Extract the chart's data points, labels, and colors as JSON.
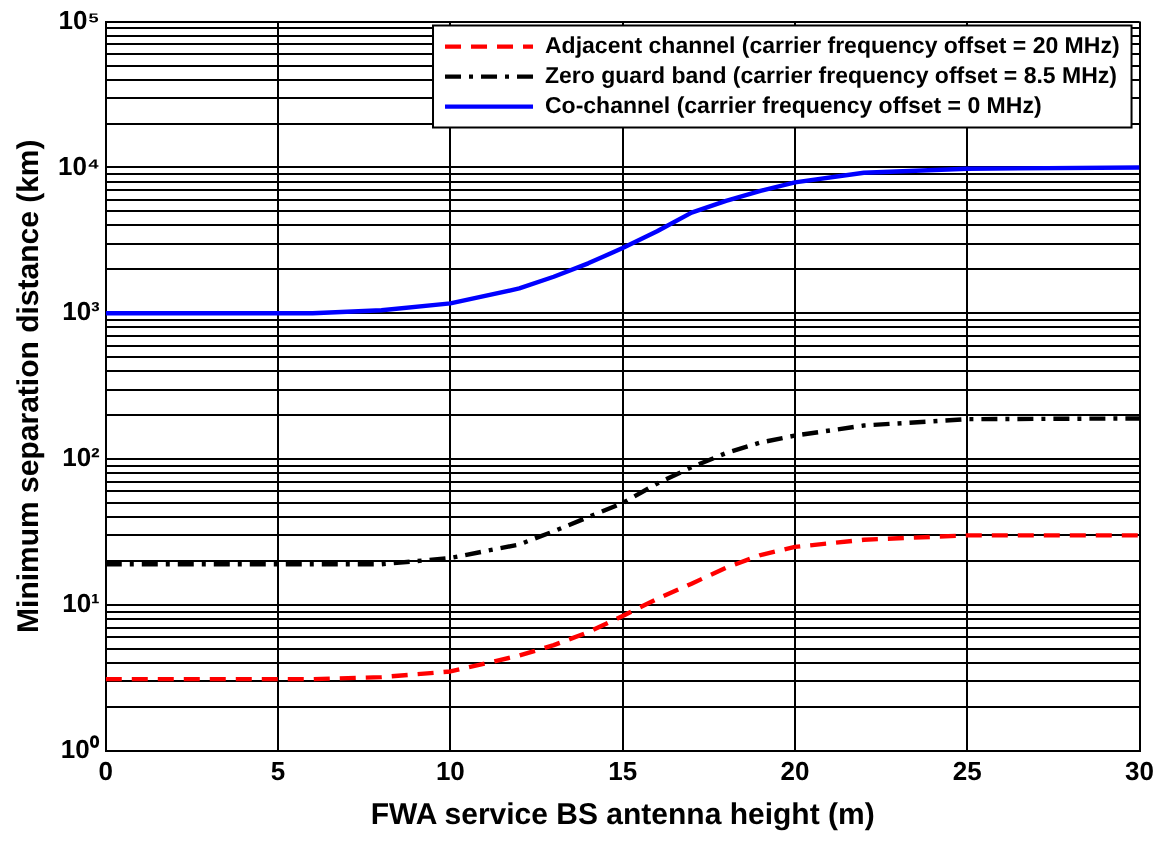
{
  "chart_data": {
    "type": "line",
    "xlabel": "FWA service BS antenna height (m)",
    "ylabel": "Minimum separation distance (km)",
    "log": "y",
    "grid": true,
    "legend": "top right",
    "marker": "none",
    "xlim": [
      0,
      30
    ],
    "xticks": [
      0,
      5,
      10,
      15,
      20,
      25,
      30
    ],
    "ylim": [
      1,
      100000
    ],
    "yticks": [
      {
        "value": 1,
        "label": "10⁰"
      },
      {
        "value": 2,
        "label": null
      },
      {
        "value": 3,
        "label": null
      },
      {
        "value": 4,
        "label": null
      },
      {
        "value": 5,
        "label": null
      },
      {
        "value": 6,
        "label": null
      },
      {
        "value": 7,
        "label": null
      },
      {
        "value": 8,
        "label": null
      },
      {
        "value": 9,
        "label": null
      },
      {
        "value": 10,
        "label": "10¹"
      },
      {
        "value": 20,
        "label": null
      },
      {
        "value": 30,
        "label": null
      },
      {
        "value": 40,
        "label": null
      },
      {
        "value": 50,
        "label": null
      },
      {
        "value": 60,
        "label": null
      },
      {
        "value": 70,
        "label": null
      },
      {
        "value": 80,
        "label": null
      },
      {
        "value": 90,
        "label": null
      },
      {
        "value": 100,
        "label": "10²"
      },
      {
        "value": 200,
        "label": null
      },
      {
        "value": 300,
        "label": null
      },
      {
        "value": 400,
        "label": null
      },
      {
        "value": 500,
        "label": null
      },
      {
        "value": 600,
        "label": null
      },
      {
        "value": 700,
        "label": null
      },
      {
        "value": 800,
        "label": null
      },
      {
        "value": 900,
        "label": null
      },
      {
        "value": 1000,
        "label": "10³"
      },
      {
        "value": 2000,
        "label": null
      },
      {
        "value": 3000,
        "label": null
      },
      {
        "value": 4000,
        "label": null
      },
      {
        "value": 5000,
        "label": null
      },
      {
        "value": 6000,
        "label": null
      },
      {
        "value": 7000,
        "label": null
      },
      {
        "value": 8000,
        "label": null
      },
      {
        "value": 9000,
        "label": null
      },
      {
        "value": 10000,
        "label": "10⁴"
      },
      {
        "value": 20000,
        "label": null
      },
      {
        "value": 30000,
        "label": null
      },
      {
        "value": 40000,
        "label": null
      },
      {
        "value": 50000,
        "label": null
      },
      {
        "value": 60000,
        "label": null
      },
      {
        "value": 70000,
        "label": null
      },
      {
        "value": 80000,
        "label": null
      },
      {
        "value": 90000,
        "label": null
      },
      {
        "value": 100000,
        "label": "10⁵"
      }
    ],
    "x": [
      0,
      2,
      4,
      6,
      8,
      10,
      12,
      13,
      14,
      15,
      16,
      17,
      18,
      19,
      20,
      22,
      25,
      30
    ],
    "series": [
      {
        "name": "Adjacent channel (carrier frequency offset = 20 MHz)",
        "color": "#ff0000",
        "line_style": "dashed",
        "values": [
          3.1,
          3.1,
          3.1,
          3.1,
          3.2,
          3.5,
          4.5,
          5.3,
          6.5,
          8.4,
          11,
          14,
          18,
          22,
          25,
          28,
          30,
          30
        ]
      },
      {
        "name": "Zero guard band (carrier frequency offset = 8.5 MHz)",
        "color": "#000000",
        "line_style": "dashdot",
        "values": [
          19,
          19,
          19,
          19,
          19,
          21,
          26,
          32,
          40,
          50,
          68,
          88,
          110,
          130,
          145,
          170,
          188,
          190
        ]
      },
      {
        "name": "Co-channel (carrier frequency offset = 0 MHz)",
        "color": "#0000ff",
        "line_style": "solid",
        "values": [
          1000,
          1000,
          1000,
          1000,
          1050,
          1170,
          1480,
          1780,
          2200,
          2800,
          3650,
          4900,
          5900,
          6900,
          7900,
          9200,
          9800,
          10000
        ]
      }
    ]
  }
}
